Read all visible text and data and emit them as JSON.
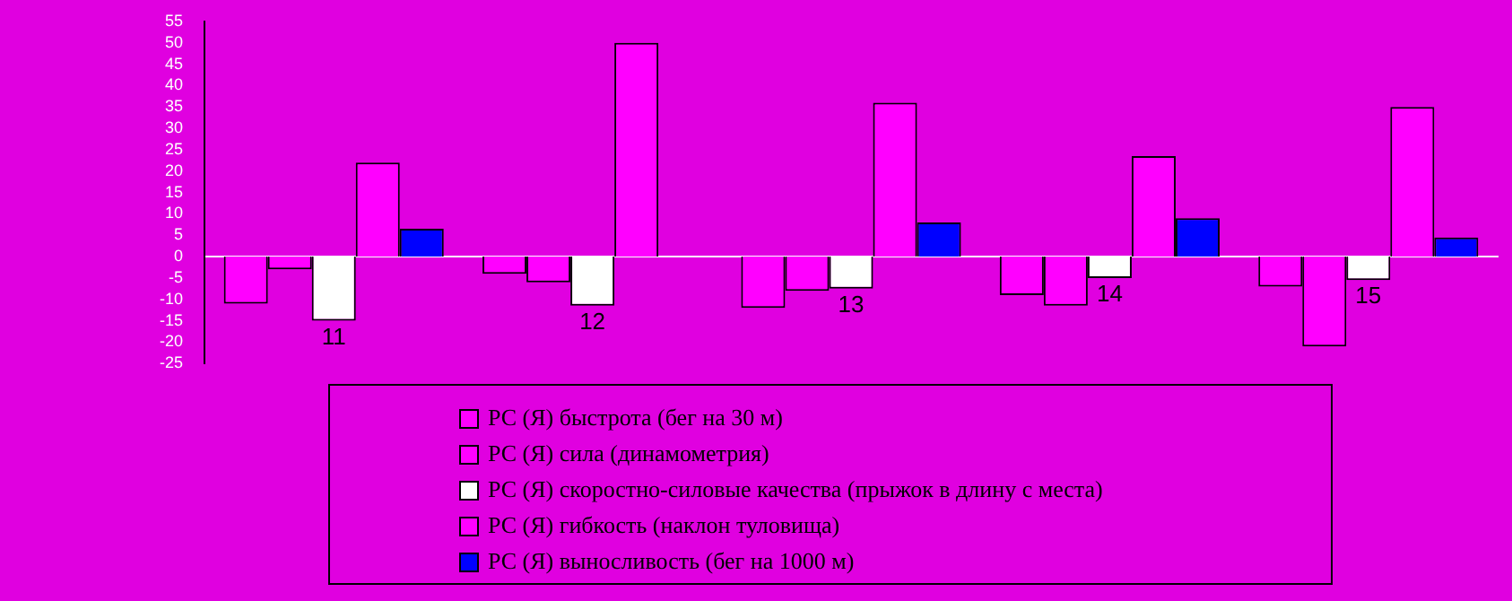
{
  "chart_data": {
    "type": "bar",
    "categories": [
      "11",
      "12",
      "13",
      "14",
      "15"
    ],
    "series": [
      {
        "name": "РС (Я) быстрота (бег на 30 м)",
        "color": "#ff00ff",
        "values": [
          -11,
          -4,
          -12,
          -9,
          -7
        ]
      },
      {
        "name": "РС (Я) сила (динамометрия)",
        "color": "#ff00ff",
        "values": [
          -3,
          -6,
          -8,
          -11.5,
          -21
        ]
      },
      {
        "name": "РС (Я) скоростно-силовые качества (прыжок в длину с места)",
        "color": "#ffffff",
        "values": [
          -15,
          -11.5,
          -7.5,
          -5,
          -5.5
        ]
      },
      {
        "name": "РС (Я) гибкость (наклон туловища)",
        "color": "#ff00ff",
        "values": [
          22,
          50,
          36,
          23.5,
          35
        ]
      },
      {
        "name": "РС (Я) выносливость (бег на 1000 м)",
        "color": "#0000ff",
        "values": [
          6.5,
          0,
          8,
          9,
          4.5
        ]
      }
    ],
    "ylim": [
      -25,
      55
    ],
    "yticks": [
      -25,
      -20,
      -15,
      -10,
      -5,
      0,
      5,
      10,
      15,
      20,
      25,
      30,
      35,
      40,
      45,
      50,
      55
    ],
    "grid": false,
    "legend": "bottom"
  }
}
